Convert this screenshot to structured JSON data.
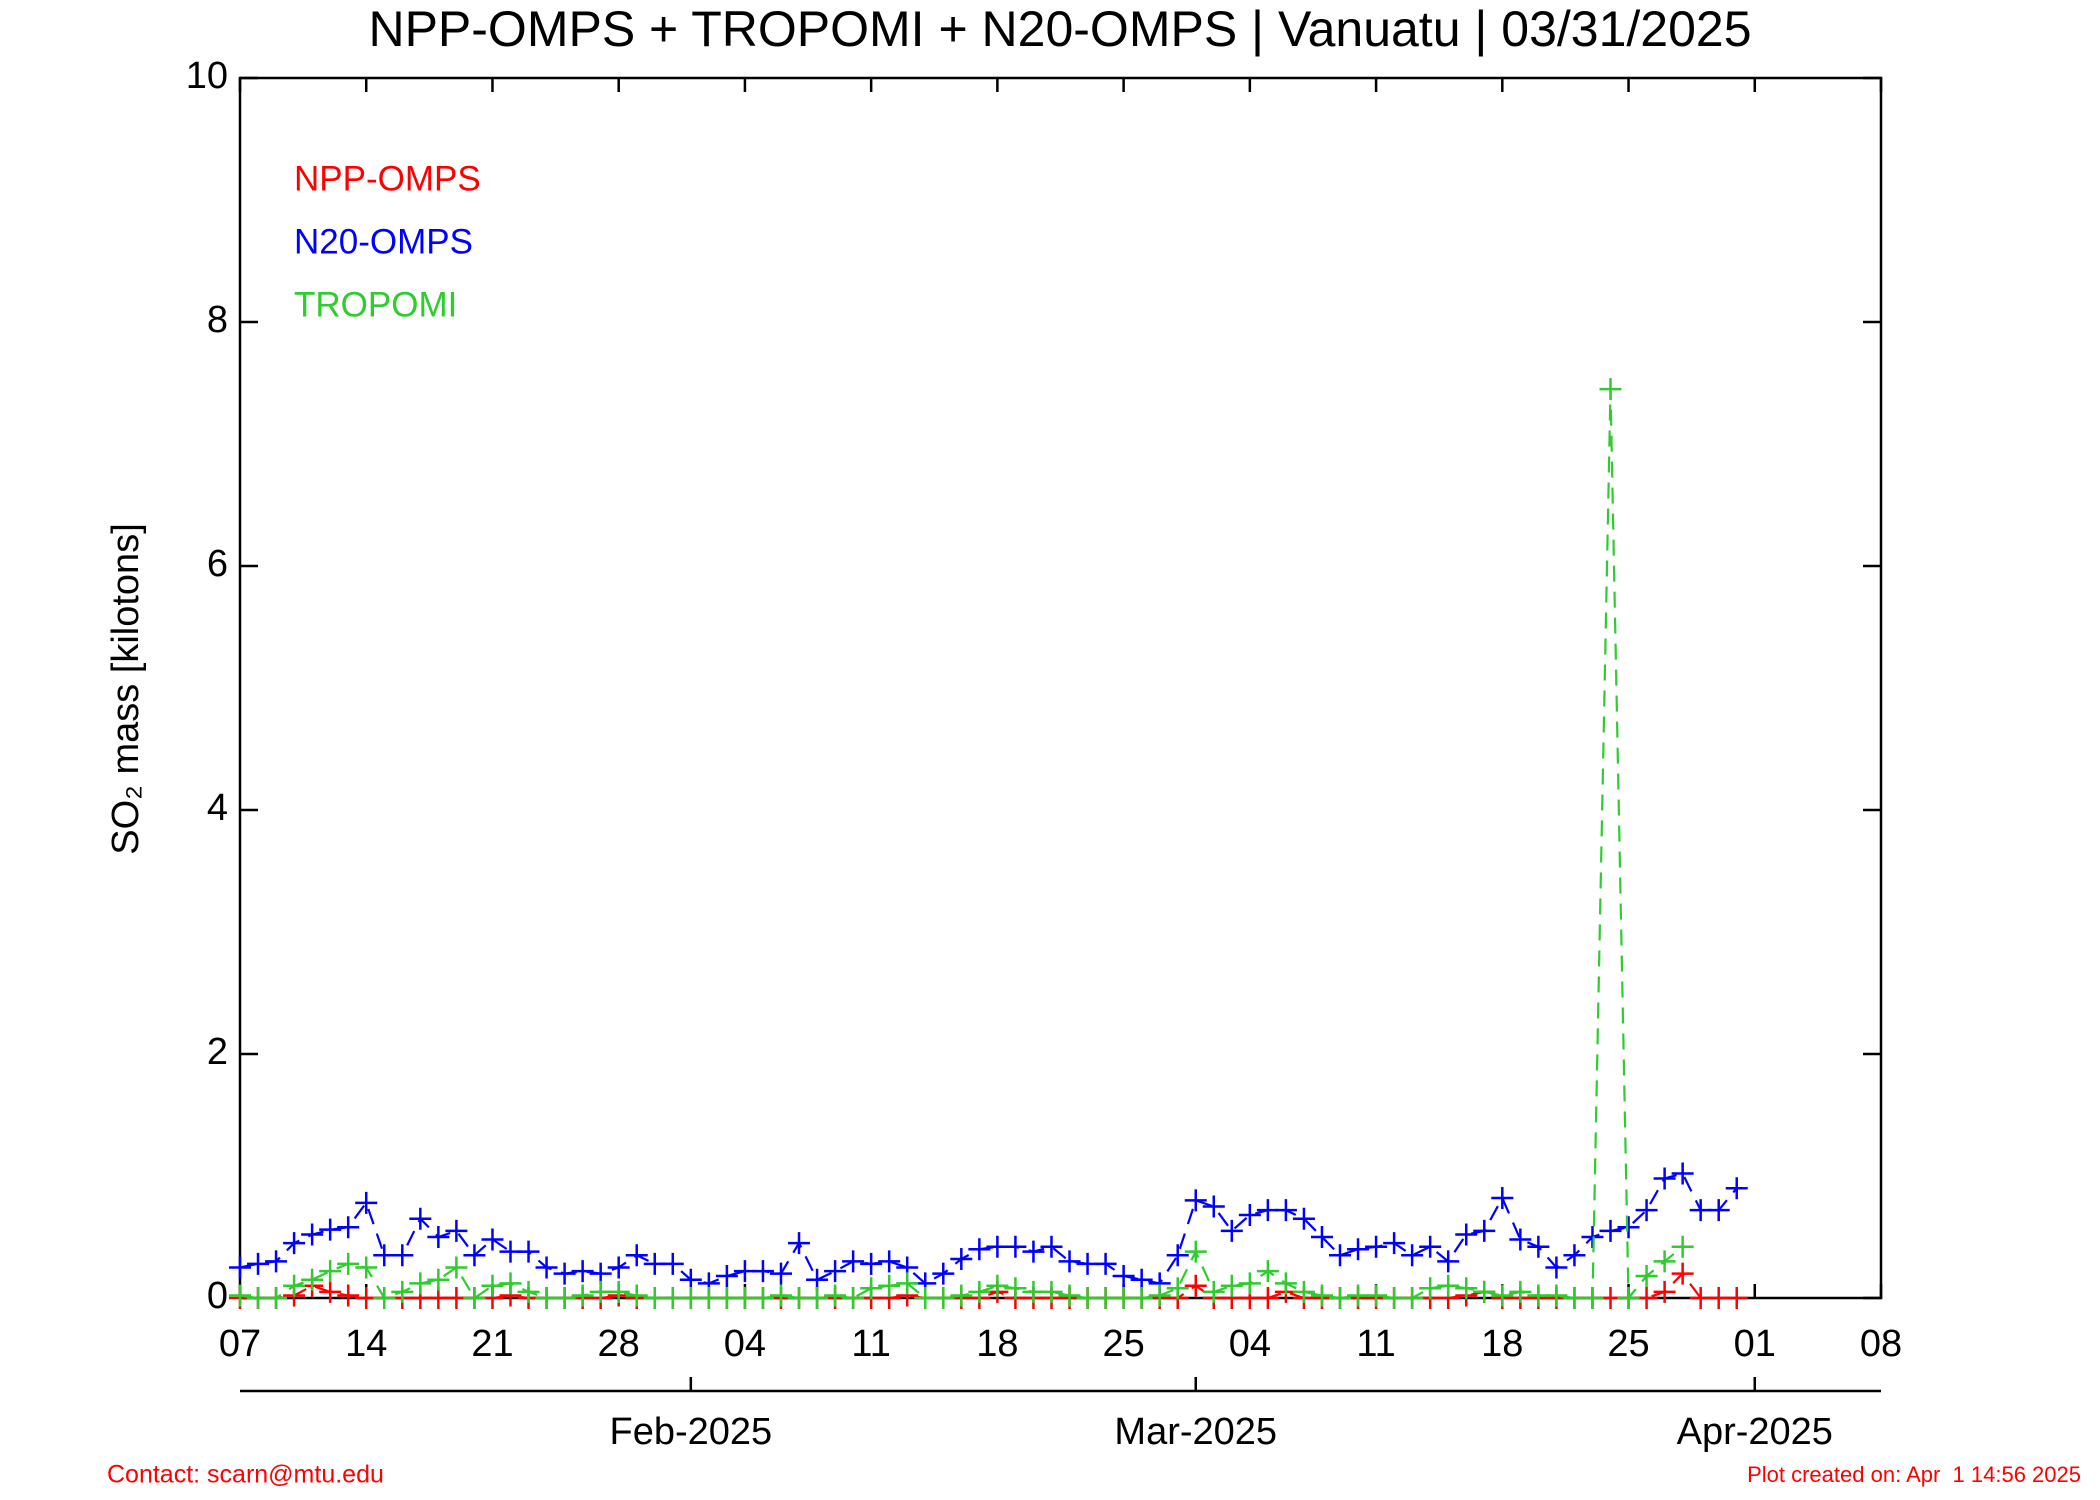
{
  "chart_data": {
    "type": "line",
    "title": "NPP-OMPS + TROPOMI + N20-OMPS | Vanuatu | 03/31/2025",
    "y_label": "SO₂ mass [kilotons]",
    "contact": "Contact: scarn@mtu.edu",
    "plot_created": "Plot created on: Apr  1 14:56 2025",
    "x": [
      "2025-01-07",
      "2025-01-08",
      "2025-01-09",
      "2025-01-10",
      "2025-01-11",
      "2025-01-12",
      "2025-01-13",
      "2025-01-14",
      "2025-01-15",
      "2025-01-16",
      "2025-01-17",
      "2025-01-18",
      "2025-01-19",
      "2025-01-20",
      "2025-01-21",
      "2025-01-22",
      "2025-01-23",
      "2025-01-24",
      "2025-01-25",
      "2025-01-26",
      "2025-01-27",
      "2025-01-28",
      "2025-01-29",
      "2025-01-30",
      "2025-01-31",
      "2025-02-01",
      "2025-02-02",
      "2025-02-03",
      "2025-02-04",
      "2025-02-05",
      "2025-02-06",
      "2025-02-07",
      "2025-02-08",
      "2025-02-09",
      "2025-02-10",
      "2025-02-11",
      "2025-02-12",
      "2025-02-13",
      "2025-02-14",
      "2025-02-15",
      "2025-02-16",
      "2025-02-17",
      "2025-02-18",
      "2025-02-19",
      "2025-02-20",
      "2025-02-21",
      "2025-02-22",
      "2025-02-23",
      "2025-02-24",
      "2025-02-25",
      "2025-02-26",
      "2025-02-27",
      "2025-02-28",
      "2025-03-01",
      "2025-03-02",
      "2025-03-03",
      "2025-03-04",
      "2025-03-05",
      "2025-03-06",
      "2025-03-07",
      "2025-03-08",
      "2025-03-09",
      "2025-03-10",
      "2025-03-11",
      "2025-03-12",
      "2025-03-13",
      "2025-03-14",
      "2025-03-15",
      "2025-03-16",
      "2025-03-17",
      "2025-03-18",
      "2025-03-19",
      "2025-03-20",
      "2025-03-21",
      "2025-03-22",
      "2025-03-23",
      "2025-03-24",
      "2025-03-25",
      "2025-03-26",
      "2025-03-27",
      "2025-03-28",
      "2025-03-29",
      "2025-03-30",
      "2025-03-31"
    ],
    "series": [
      {
        "name": "NPP-OMPS",
        "color": "#ff0000",
        "values": [
          0,
          0,
          0,
          0.02,
          0.1,
          0.05,
          0.02,
          0,
          0,
          0,
          0,
          0,
          0,
          0,
          0,
          0.02,
          0,
          0,
          0,
          0,
          0,
          0.02,
          0,
          0,
          0,
          0,
          0,
          0,
          0,
          0,
          0,
          0,
          0,
          0,
          0,
          0,
          0,
          0.02,
          0,
          0,
          0,
          0,
          0.05,
          0,
          0,
          0,
          0,
          0,
          0,
          0,
          0,
          0,
          0,
          0.1,
          0,
          0,
          0,
          0,
          0.05,
          0,
          0,
          0,
          0,
          0,
          0,
          0,
          0,
          0,
          0.02,
          0.05,
          0,
          0,
          0,
          0,
          0,
          0,
          0,
          0,
          0,
          0.05,
          0.2,
          0,
          0,
          0
        ]
      },
      {
        "name": "N20-OMPS",
        "color": "#0000ff",
        "values": [
          0.25,
          0.28,
          0.3,
          0.45,
          0.52,
          0.56,
          0.58,
          0.78,
          0.35,
          0.35,
          0.65,
          0.5,
          0.55,
          0.35,
          0.48,
          0.38,
          0.38,
          0.25,
          0.2,
          0.22,
          0.2,
          0.25,
          0.35,
          0.28,
          0.28,
          0.15,
          0.12,
          0.18,
          0.22,
          0.22,
          0.2,
          0.45,
          0.15,
          0.22,
          0.3,
          0.28,
          0.3,
          0.25,
          0.12,
          0.2,
          0.32,
          0.4,
          0.42,
          0.42,
          0.38,
          0.42,
          0.3,
          0.28,
          0.28,
          0.18,
          0.15,
          0.12,
          0.35,
          0.8,
          0.75,
          0.55,
          0.68,
          0.72,
          0.72,
          0.65,
          0.5,
          0.35,
          0.4,
          0.42,
          0.45,
          0.35,
          0.42,
          0.3,
          0.52,
          0.55,
          0.82,
          0.48,
          0.42,
          0.25,
          0.35,
          0.5,
          0.55,
          0.58,
          0.72,
          0.98,
          1.02,
          0.72,
          0.72,
          0.9
        ]
      },
      {
        "name": "TROPOMI",
        "color": "#2ecc2e",
        "values": [
          0.02,
          0,
          0,
          0.1,
          0.15,
          0.22,
          0.28,
          0.25,
          0,
          0.05,
          0.12,
          0.15,
          0.25,
          0,
          0.1,
          0.12,
          0.05,
          0,
          0,
          0.02,
          0.05,
          0.05,
          0.02,
          0,
          0,
          0,
          0,
          0,
          0,
          0,
          0.02,
          0,
          0,
          0.02,
          0,
          0.08,
          0.1,
          0.12,
          0,
          0,
          0.02,
          0.05,
          0.1,
          0.08,
          0.05,
          0.05,
          0.02,
          0,
          0,
          0,
          0,
          0.02,
          0.08,
          0.38,
          0.05,
          0.1,
          0.12,
          0.22,
          0.12,
          0.05,
          0.02,
          0,
          0.02,
          0.02,
          0,
          0,
          0.08,
          0.1,
          0.08,
          0.05,
          0.02,
          0.05,
          0.02,
          0.02,
          0,
          0,
          7.45,
          0,
          0.18,
          0.3,
          0.42,
          null,
          null,
          null
        ]
      }
    ],
    "xlim": [
      "2025-01-07",
      "2025-04-08"
    ],
    "xticks": [
      {
        "value": "2025-01-07",
        "label": "07"
      },
      {
        "value": "2025-01-14",
        "label": "14"
      },
      {
        "value": "2025-01-21",
        "label": "21"
      },
      {
        "value": "2025-01-28",
        "label": "28"
      },
      {
        "value": "2025-02-04",
        "label": "04"
      },
      {
        "value": "2025-02-11",
        "label": "11"
      },
      {
        "value": "2025-02-18",
        "label": "18"
      },
      {
        "value": "2025-02-25",
        "label": "25"
      },
      {
        "value": "2025-03-04",
        "label": "04"
      },
      {
        "value": "2025-03-11",
        "label": "11"
      },
      {
        "value": "2025-03-18",
        "label": "18"
      },
      {
        "value": "2025-03-25",
        "label": "25"
      },
      {
        "value": "2025-04-01",
        "label": "01"
      },
      {
        "value": "2025-04-08",
        "label": "08"
      }
    ],
    "month_ticks": [
      {
        "value": "2025-02-01",
        "label": "Feb-2025"
      },
      {
        "value": "2025-03-01",
        "label": "Mar-2025"
      },
      {
        "value": "2025-04-01",
        "label": "Apr-2025"
      }
    ],
    "ylim": [
      0,
      10
    ],
    "yticks": [
      0,
      2,
      4,
      6,
      8,
      10
    ],
    "legend": "upper left"
  }
}
